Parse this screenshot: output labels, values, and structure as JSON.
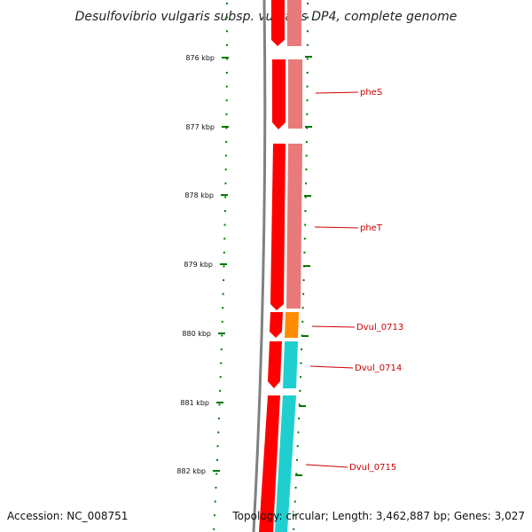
{
  "title": "Desulfovibrio vulgaris subsp. vulgaris DP4, complete genome",
  "footer": {
    "accession": "Accession: NC_008751",
    "summary": "Topology: circular; Length: 3,462,887 bp; Genes: 3,027"
  },
  "colors": {
    "backbone": "#808080",
    "tick": "#007700",
    "strand_outer": "#ff0000",
    "gene_pheS_pheT": "#e87a7a",
    "gene_Dvul_0713": "#ff8c00",
    "gene_Dvul_0714_0715": "#1fcfcf",
    "label": "#cc0000"
  },
  "ticks": {
    "unit": "kbp",
    "labels": [
      "876 kbp",
      "877 kbp",
      "878 kbp",
      "879 kbp",
      "880 kbp",
      "881 kbp",
      "882 kbp"
    ],
    "values_kbp": [
      876,
      877,
      878,
      879,
      880,
      881,
      882
    ]
  },
  "genes": [
    {
      "name": "pheS"
    },
    {
      "name": "pheT"
    },
    {
      "name": "Dvul_0713"
    },
    {
      "name": "Dvul_0714"
    },
    {
      "name": "Dvul_0715"
    }
  ]
}
